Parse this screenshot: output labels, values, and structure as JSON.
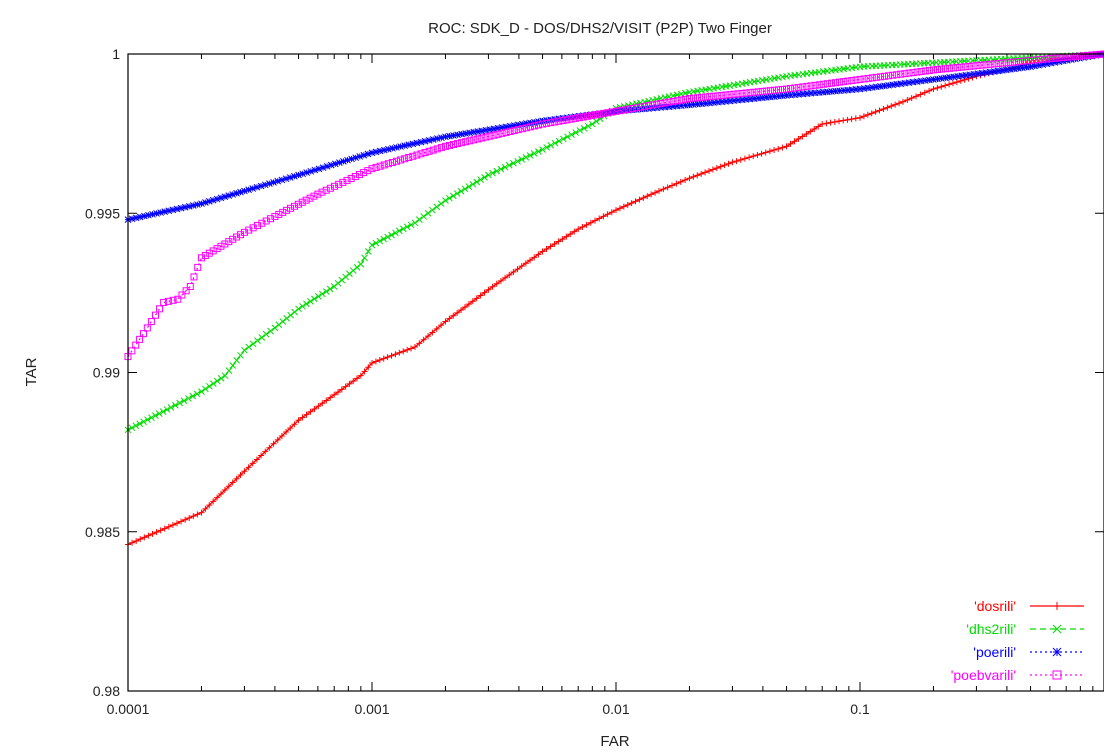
{
  "chart_data": {
    "type": "line",
    "title": "ROC: SDK_D - DOS/DHS2/VISIT (P2P) Two Finger",
    "xlabel": "FAR",
    "ylabel": "TAR",
    "x_scale": "log",
    "xlim": [
      0.0001,
      1
    ],
    "ylim": [
      0.98,
      1
    ],
    "x_ticks": [
      0.0001,
      0.001,
      0.01,
      0.1,
      1
    ],
    "x_tick_labels": [
      "0.0001",
      "0.001",
      "0.01",
      "0.1",
      ""
    ],
    "y_ticks": [
      0.98,
      0.985,
      0.99,
      0.995,
      1
    ],
    "y_tick_labels": [
      "0.98",
      "0.985",
      "0.99",
      "0.995",
      "1"
    ],
    "grid": false,
    "legend_position": "bottom-right",
    "series": [
      {
        "name": "'dosrili'",
        "color": "#ff0000",
        "marker": "plus",
        "dash": "solid",
        "points": [
          [
            0.0001,
            0.9846
          ],
          [
            0.0002,
            0.9856
          ],
          [
            0.0003,
            0.9869
          ],
          [
            0.0005,
            0.9885
          ],
          [
            0.0007,
            0.9893
          ],
          [
            0.0009,
            0.9899
          ],
          [
            0.001,
            0.9903
          ],
          [
            0.0015,
            0.9908
          ],
          [
            0.002,
            0.9916
          ],
          [
            0.003,
            0.9926
          ],
          [
            0.005,
            0.9938
          ],
          [
            0.007,
            0.9945
          ],
          [
            0.01,
            0.9951
          ],
          [
            0.015,
            0.9957
          ],
          [
            0.02,
            0.9961
          ],
          [
            0.03,
            0.9966
          ],
          [
            0.05,
            0.9971
          ],
          [
            0.07,
            0.9978
          ],
          [
            0.1,
            0.998
          ],
          [
            0.15,
            0.9985
          ],
          [
            0.2,
            0.9989
          ],
          [
            0.3,
            0.9993
          ],
          [
            0.5,
            0.9997
          ],
          [
            1,
            1.0
          ]
        ]
      },
      {
        "name": "'dhs2rili'",
        "color": "#00dd00",
        "marker": "cross",
        "dash": "dashed",
        "points": [
          [
            0.0001,
            0.9882
          ],
          [
            0.00015,
            0.9889
          ],
          [
            0.0002,
            0.9894
          ],
          [
            0.00025,
            0.9899
          ],
          [
            0.0003,
            0.9907
          ],
          [
            0.0004,
            0.9914
          ],
          [
            0.0005,
            0.992
          ],
          [
            0.0007,
            0.9927
          ],
          [
            0.0009,
            0.9934
          ],
          [
            0.001,
            0.994
          ],
          [
            0.0015,
            0.9947
          ],
          [
            0.002,
            0.9954
          ],
          [
            0.003,
            0.9962
          ],
          [
            0.005,
            0.997
          ],
          [
            0.008,
            0.9978
          ],
          [
            0.01,
            0.9983
          ],
          [
            0.02,
            0.9988
          ],
          [
            0.05,
            0.9993
          ],
          [
            0.1,
            0.9996
          ],
          [
            0.3,
            0.9998
          ],
          [
            1,
            1.0
          ]
        ]
      },
      {
        "name": "'poerili'",
        "color": "#0000ff",
        "marker": "star",
        "dash": "dotted",
        "points": [
          [
            0.0001,
            0.9948
          ],
          [
            0.0002,
            0.9953
          ],
          [
            0.0003,
            0.9957
          ],
          [
            0.0005,
            0.9962
          ],
          [
            0.001,
            0.9969
          ],
          [
            0.002,
            0.9974
          ],
          [
            0.005,
            0.9979
          ],
          [
            0.01,
            0.9982
          ],
          [
            0.02,
            0.9984
          ],
          [
            0.05,
            0.9987
          ],
          [
            0.1,
            0.9989
          ],
          [
            0.2,
            0.9992
          ],
          [
            0.5,
            0.9996
          ],
          [
            1,
            1.0
          ]
        ]
      },
      {
        "name": "'poebvarili'",
        "color": "#ff00ff",
        "marker": "square",
        "dash": "dotted",
        "points": [
          [
            0.0001,
            0.9905
          ],
          [
            0.00012,
            0.9914
          ],
          [
            0.00014,
            0.9922
          ],
          [
            0.00016,
            0.9923
          ],
          [
            0.00018,
            0.9927
          ],
          [
            0.0002,
            0.9936
          ],
          [
            0.0003,
            0.9944
          ],
          [
            0.0004,
            0.9949
          ],
          [
            0.0006,
            0.9956
          ],
          [
            0.001,
            0.9964
          ],
          [
            0.002,
            0.9971
          ],
          [
            0.005,
            0.9978
          ],
          [
            0.01,
            0.9982
          ],
          [
            0.02,
            0.9986
          ],
          [
            0.05,
            0.9989
          ],
          [
            0.1,
            0.9992
          ],
          [
            0.2,
            0.9995
          ],
          [
            0.5,
            0.9998
          ],
          [
            1,
            1.0
          ]
        ]
      }
    ]
  }
}
